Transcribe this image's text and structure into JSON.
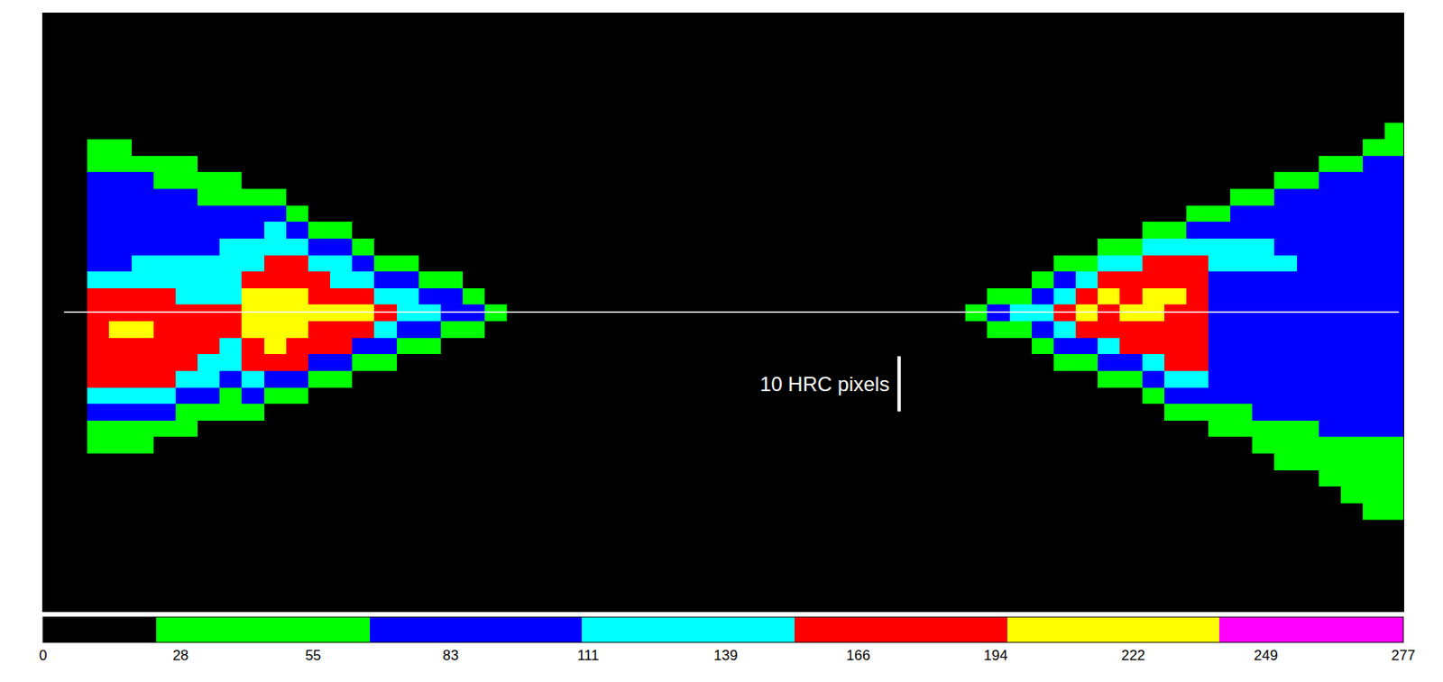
{
  "chart_data": {
    "type": "heatmap",
    "xlim": [
      0,
      246.3
    ],
    "ylim": [
      0,
      108.3
    ],
    "tick_labels": false,
    "series": [
      {
        "x": [
          10,
          14,
          18,
          22,
          26,
          30,
          34,
          38,
          42,
          46,
          50,
          54,
          58,
          62,
          66,
          70,
          74,
          78,
          82
        ],
        "y": [
          24,
          27,
          30,
          33,
          36,
          39,
          42,
          45,
          48,
          51,
          54,
          57,
          60,
          63,
          66,
          69,
          72,
          75,
          78,
          81,
          84
        ],
        "cells_by_column": [
          [
            0,
            0,
            45,
            45,
            88,
            130,
            175,
            175,
            175,
            175,
            175,
            175,
            130,
            88,
            88,
            88,
            88,
            88,
            88,
            45,
            45
          ],
          [
            0,
            0,
            45,
            45,
            88,
            130,
            175,
            175,
            175,
            217,
            175,
            175,
            130,
            88,
            88,
            88,
            88,
            88,
            88,
            45,
            45
          ],
          [
            0,
            0,
            45,
            45,
            88,
            130,
            175,
            175,
            175,
            217,
            175,
            175,
            130,
            130,
            88,
            88,
            88,
            88,
            88,
            45,
            0
          ],
          [
            0,
            0,
            0,
            45,
            88,
            130,
            175,
            175,
            175,
            175,
            175,
            175,
            130,
            130,
            88,
            88,
            88,
            88,
            45,
            45,
            0
          ],
          [
            0,
            0,
            0,
            45,
            45,
            88,
            130,
            175,
            175,
            175,
            175,
            130,
            130,
            130,
            88,
            88,
            88,
            88,
            45,
            45,
            0
          ],
          [
            0,
            0,
            0,
            0,
            45,
            88,
            130,
            130,
            175,
            175,
            175,
            130,
            130,
            130,
            88,
            88,
            88,
            45,
            45,
            0,
            0
          ],
          [
            0,
            0,
            0,
            0,
            45,
            45,
            88,
            130,
            130,
            175,
            175,
            130,
            130,
            130,
            130,
            88,
            88,
            45,
            45,
            0,
            0
          ],
          [
            0,
            0,
            0,
            0,
            45,
            88,
            130,
            175,
            175,
            217,
            217,
            217,
            175,
            130,
            130,
            88,
            88,
            45,
            0,
            0,
            0
          ],
          [
            0,
            0,
            0,
            0,
            0,
            45,
            88,
            175,
            217,
            217,
            217,
            217,
            175,
            175,
            130,
            130,
            88,
            45,
            0,
            0,
            0
          ],
          [
            0,
            0,
            0,
            0,
            0,
            45,
            88,
            175,
            175,
            217,
            217,
            217,
            175,
            175,
            130,
            88,
            45,
            0,
            0,
            0,
            0
          ],
          [
            0,
            0,
            0,
            0,
            0,
            0,
            45,
            88,
            175,
            175,
            217,
            175,
            175,
            130,
            88,
            45,
            0,
            0,
            0,
            0,
            0
          ],
          [
            0,
            0,
            0,
            0,
            0,
            0,
            45,
            88,
            175,
            175,
            217,
            175,
            130,
            130,
            88,
            45,
            0,
            0,
            0,
            0,
            0
          ],
          [
            0,
            0,
            0,
            0,
            0,
            0,
            0,
            45,
            88,
            175,
            217,
            175,
            130,
            88,
            45,
            0,
            0,
            0,
            0,
            0,
            0
          ],
          [
            0,
            0,
            0,
            0,
            0,
            0,
            0,
            45,
            88,
            130,
            175,
            130,
            88,
            45,
            0,
            0,
            0,
            0,
            0,
            0,
            0
          ],
          [
            0,
            0,
            0,
            0,
            0,
            0,
            0,
            0,
            45,
            88,
            130,
            130,
            88,
            45,
            0,
            0,
            0,
            0,
            0,
            0,
            0
          ],
          [
            0,
            0,
            0,
            0,
            0,
            0,
            0,
            0,
            45,
            88,
            130,
            88,
            45,
            0,
            0,
            0,
            0,
            0,
            0,
            0,
            0
          ],
          [
            0,
            0,
            0,
            0,
            0,
            0,
            0,
            0,
            0,
            45,
            88,
            88,
            45,
            0,
            0,
            0,
            0,
            0,
            0,
            0,
            0
          ],
          [
            0,
            0,
            0,
            0,
            0,
            0,
            0,
            0,
            0,
            45,
            88,
            45,
            0,
            0,
            0,
            0,
            0,
            0,
            0,
            0,
            0
          ],
          [
            0,
            0,
            0,
            0,
            0,
            0,
            0,
            0,
            0,
            0,
            45,
            0,
            0,
            0,
            0,
            0,
            0,
            0,
            0,
            0,
            0
          ]
        ]
      },
      {
        "x": [
          169,
          173,
          177,
          181,
          185,
          189,
          193,
          197,
          201,
          205,
          209,
          213,
          217,
          221,
          225,
          229,
          233,
          237,
          241,
          245
        ],
        "y": [
          18,
          21,
          24,
          27,
          30,
          33,
          36,
          39,
          42,
          45,
          48,
          51,
          54,
          57,
          60,
          63,
          66,
          69,
          72,
          75,
          78,
          81,
          84,
          87
        ],
        "cells_by_column": [
          [
            0,
            0,
            0,
            0,
            0,
            0,
            0,
            0,
            0,
            0,
            0,
            0,
            45,
            0,
            0,
            0,
            0,
            0,
            0,
            0,
            0,
            0,
            0,
            0
          ],
          [
            0,
            0,
            0,
            0,
            0,
            0,
            0,
            0,
            0,
            0,
            0,
            45,
            88,
            45,
            0,
            0,
            0,
            0,
            0,
            0,
            0,
            0,
            0,
            0
          ],
          [
            0,
            0,
            0,
            0,
            0,
            0,
            0,
            0,
            0,
            0,
            0,
            45,
            130,
            45,
            0,
            0,
            0,
            0,
            0,
            0,
            0,
            0,
            0,
            0
          ],
          [
            0,
            0,
            0,
            0,
            0,
            0,
            0,
            0,
            0,
            0,
            45,
            88,
            130,
            88,
            45,
            0,
            0,
            0,
            0,
            0,
            0,
            0,
            0,
            0
          ],
          [
            0,
            0,
            0,
            0,
            0,
            0,
            0,
            0,
            0,
            45,
            88,
            130,
            175,
            130,
            88,
            45,
            0,
            0,
            0,
            0,
            0,
            0,
            0,
            0
          ],
          [
            0,
            0,
            0,
            0,
            0,
            0,
            0,
            0,
            0,
            45,
            88,
            175,
            217,
            175,
            130,
            45,
            0,
            0,
            0,
            0,
            0,
            0,
            0,
            0
          ],
          [
            0,
            0,
            0,
            0,
            0,
            0,
            0,
            0,
            45,
            88,
            130,
            175,
            175,
            217,
            175,
            130,
            45,
            0,
            0,
            0,
            0,
            0,
            0,
            0
          ],
          [
            0,
            0,
            0,
            0,
            0,
            0,
            0,
            0,
            45,
            88,
            175,
            175,
            217,
            175,
            175,
            130,
            45,
            0,
            0,
            0,
            0,
            0,
            0,
            0
          ],
          [
            0,
            0,
            0,
            0,
            0,
            0,
            0,
            45,
            88,
            130,
            175,
            175,
            217,
            217,
            175,
            175,
            130,
            45,
            0,
            0,
            0,
            0,
            0,
            0
          ],
          [
            0,
            0,
            0,
            0,
            0,
            0,
            45,
            88,
            130,
            175,
            175,
            175,
            175,
            217,
            175,
            175,
            130,
            45,
            0,
            0,
            0,
            0,
            0,
            0
          ],
          [
            0,
            0,
            0,
            0,
            0,
            0,
            45,
            88,
            130,
            175,
            175,
            175,
            175,
            175,
            175,
            175,
            130,
            88,
            45,
            0,
            0,
            0,
            0,
            0
          ],
          [
            0,
            0,
            0,
            0,
            0,
            45,
            45,
            88,
            88,
            88,
            88,
            88,
            88,
            88,
            88,
            130,
            130,
            88,
            45,
            0,
            0,
            0,
            0,
            0
          ],
          [
            0,
            0,
            0,
            0,
            0,
            45,
            45,
            88,
            88,
            88,
            88,
            88,
            88,
            88,
            88,
            130,
            130,
            88,
            88,
            45,
            0,
            0,
            0,
            0
          ],
          [
            0,
            0,
            0,
            0,
            45,
            45,
            88,
            88,
            88,
            88,
            88,
            88,
            88,
            88,
            88,
            130,
            130,
            88,
            88,
            45,
            0,
            0,
            0,
            0
          ],
          [
            0,
            0,
            0,
            45,
            45,
            45,
            88,
            88,
            88,
            88,
            88,
            88,
            88,
            88,
            88,
            130,
            88,
            88,
            88,
            88,
            45,
            0,
            0,
            0
          ],
          [
            0,
            0,
            0,
            45,
            45,
            45,
            88,
            88,
            88,
            88,
            88,
            88,
            88,
            88,
            88,
            88,
            88,
            88,
            88,
            88,
            45,
            0,
            0,
            0
          ],
          [
            0,
            0,
            45,
            45,
            45,
            88,
            88,
            88,
            88,
            88,
            88,
            88,
            88,
            88,
            88,
            88,
            88,
            88,
            88,
            88,
            88,
            45,
            0,
            0
          ],
          [
            0,
            45,
            45,
            45,
            45,
            88,
            88,
            88,
            88,
            88,
            88,
            88,
            88,
            88,
            88,
            88,
            88,
            88,
            88,
            88,
            88,
            45,
            0,
            0
          ],
          [
            45,
            45,
            45,
            45,
            45,
            88,
            88,
            88,
            88,
            88,
            88,
            88,
            88,
            88,
            88,
            88,
            88,
            88,
            88,
            88,
            88,
            88,
            45,
            0
          ],
          [
            45,
            45,
            45,
            45,
            45,
            88,
            88,
            88,
            88,
            88,
            88,
            88,
            88,
            88,
            88,
            88,
            88,
            88,
            88,
            88,
            88,
            88,
            45,
            45
          ]
        ]
      }
    ],
    "colorbar": {
      "range": [
        0,
        277
      ],
      "ticks": [
        0,
        28,
        55,
        83,
        111,
        139,
        166,
        194,
        222,
        249,
        277
      ],
      "levels": [
        0,
        23,
        66.5,
        109.7,
        153.1,
        196.4,
        239.5,
        277
      ],
      "colors": [
        "#000000",
        "#00ff00",
        "#0000ff",
        "#00ffff",
        "#ff0000",
        "#ffff00",
        "#ff00ff"
      ]
    },
    "center_line": {
      "y": 54.2,
      "x": [
        3.8,
        245.5
      ]
    },
    "scale_bar": {
      "label": "10 HRC pixels",
      "length": 10,
      "x": 155,
      "y": 36.2
    }
  }
}
